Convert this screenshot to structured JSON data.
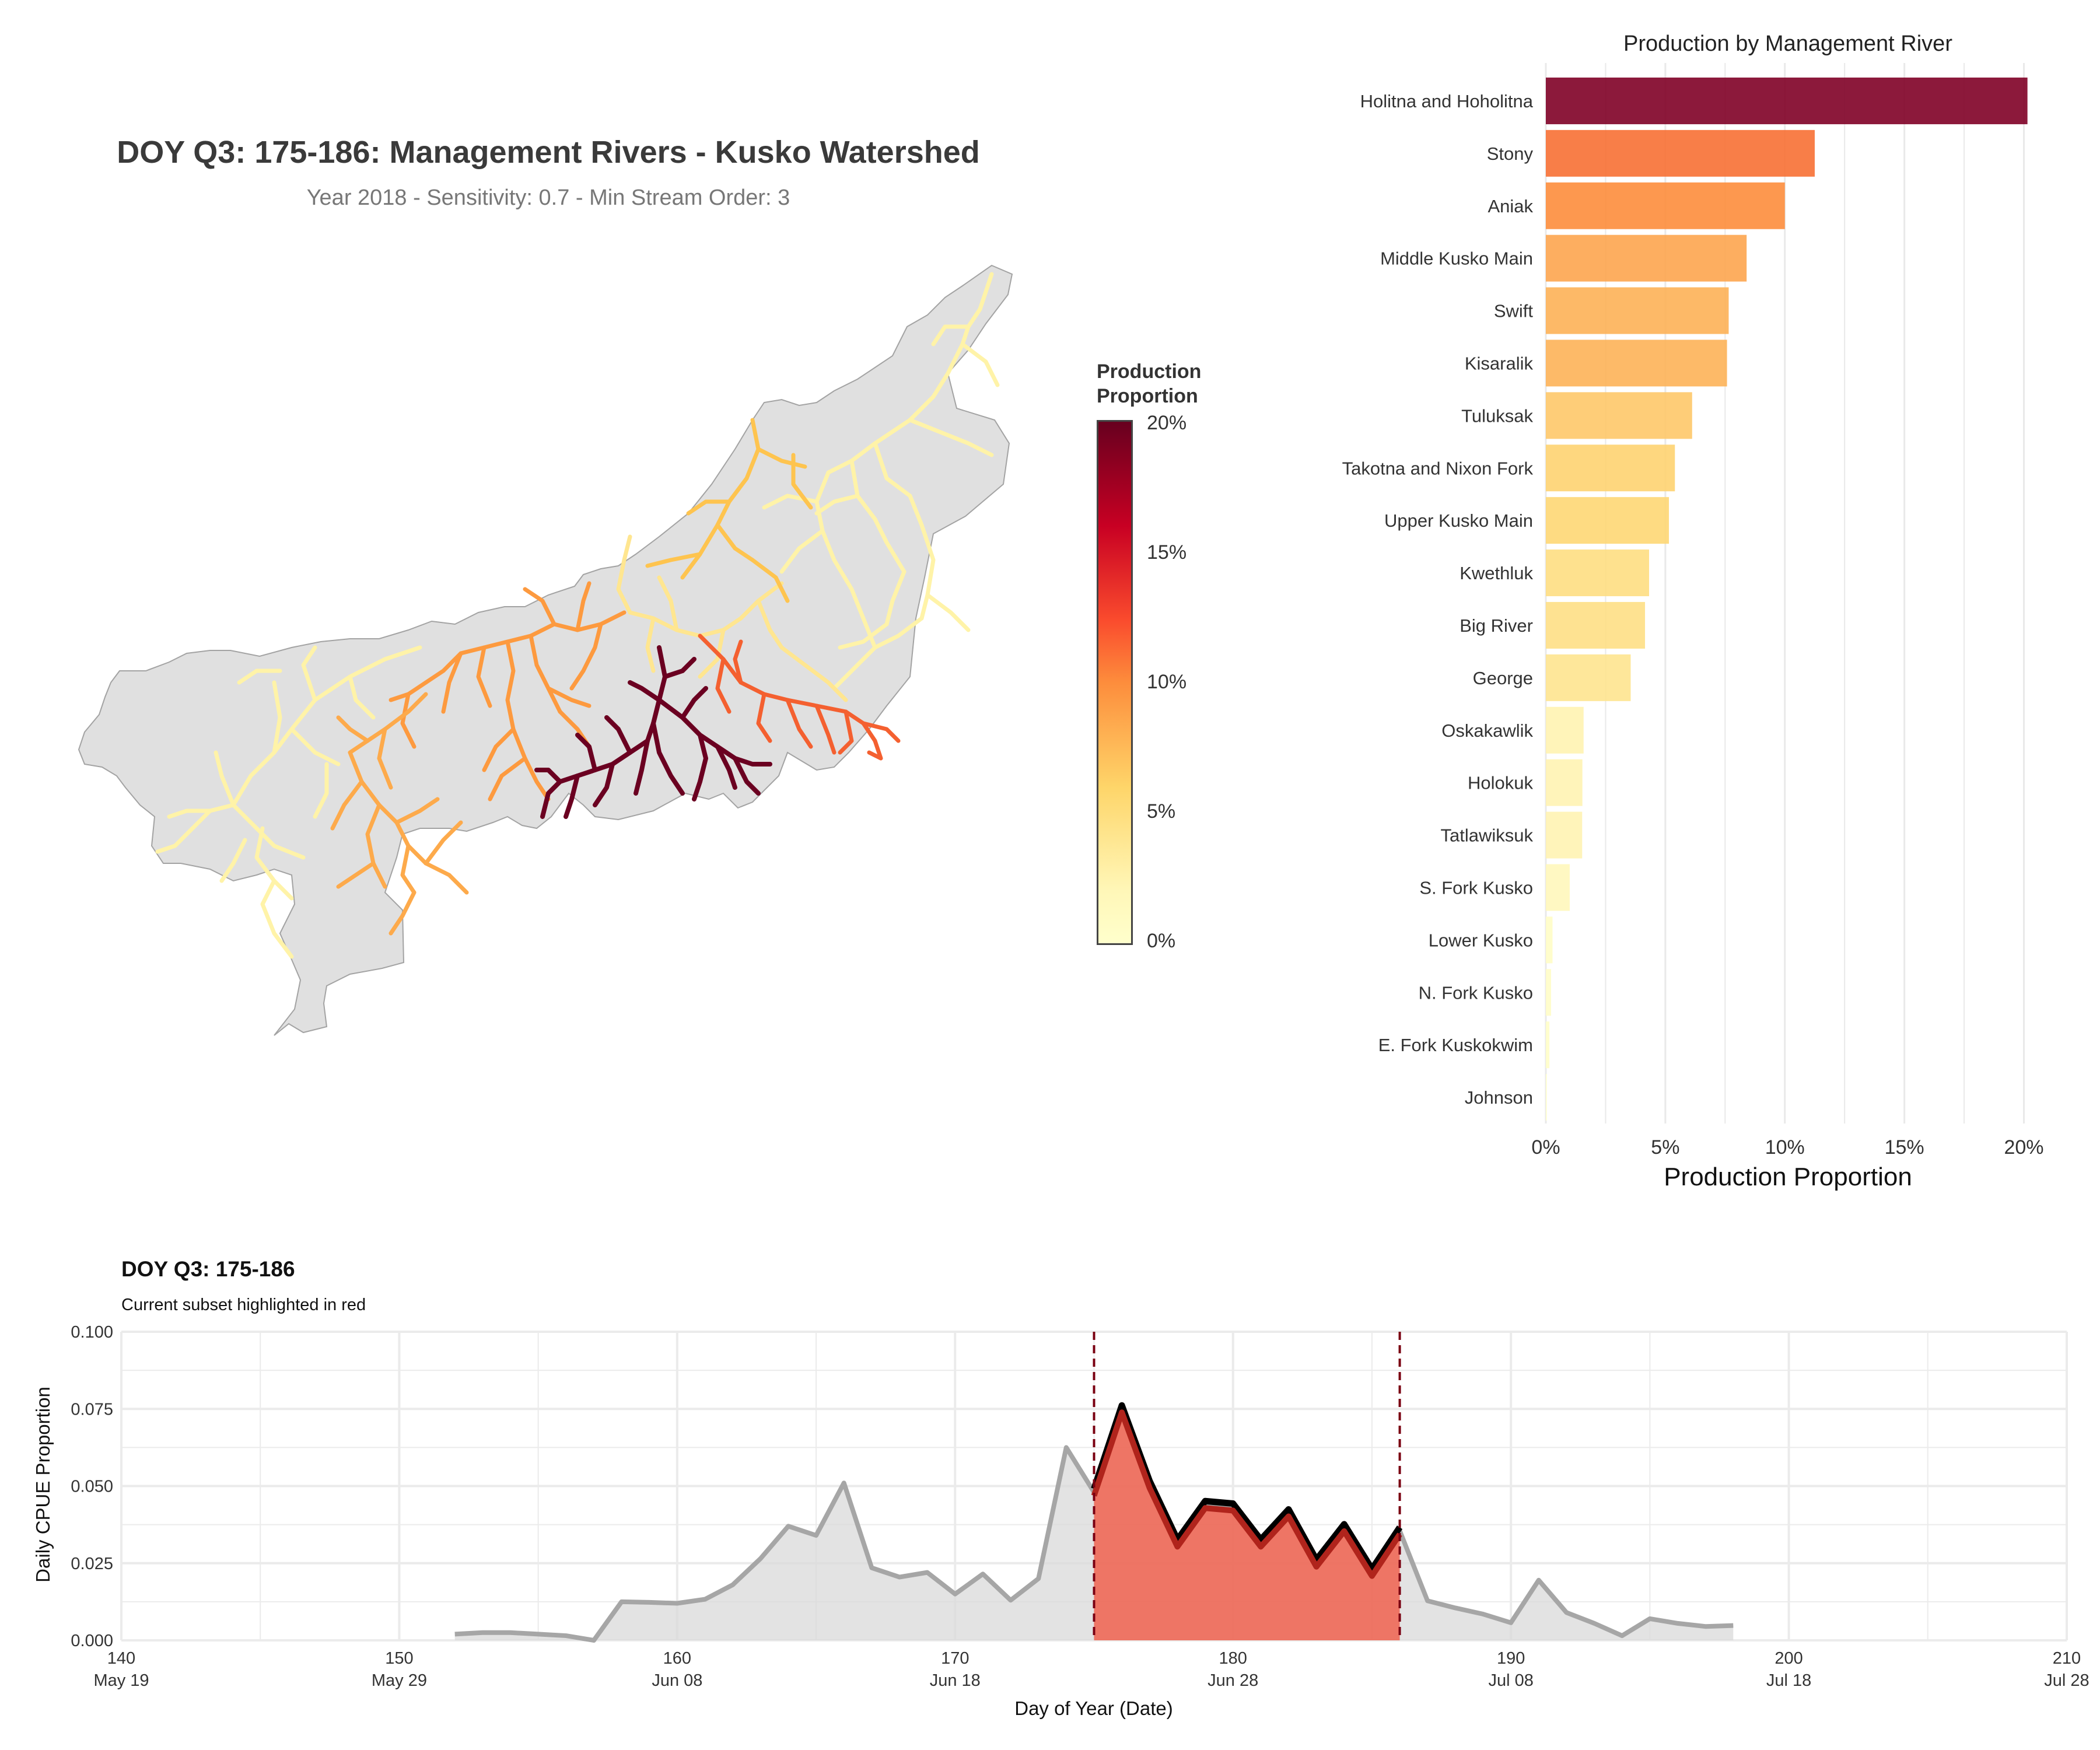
{
  "map": {
    "title": "DOY Q3: 175-186: Management Rivers - Kusko Watershed",
    "subtitle": "Year 2018 - Sensitivity: 0.7 - Min Stream Order: 3",
    "legend": {
      "title_line1": "Production",
      "title_line2": "Proportion",
      "ticks": [
        "20%",
        "15%",
        "10%",
        "5%",
        "0%"
      ]
    },
    "colors": {
      "land": "#e0e0e0",
      "outline": "#9e9e9e",
      "low": "#ffffcc",
      "high": "#67001f"
    }
  },
  "chart_data": [
    {
      "type": "bar",
      "orientation": "horizontal",
      "title": "Production by Management River",
      "xlabel": "Production Proportion",
      "ylabel": "",
      "xlim": [
        0,
        0.205
      ],
      "xticks": [
        0,
        0.05,
        0.1,
        0.15,
        0.2
      ],
      "xtick_labels": [
        "0%",
        "5%",
        "10%",
        "15%",
        "20%"
      ],
      "grid": true,
      "categories": [
        "Holitna and Hoholitna",
        "Stony",
        "Aniak",
        "Middle Kusko Main",
        "Swift",
        "Kisaralik",
        "Tuluksak",
        "Takotna and Nixon Fork",
        "Upper Kusko Main",
        "Kwethluk",
        "Big River",
        "George",
        "Oskakawlik",
        "Holokuk",
        "Tatlawiksuk",
        "S. Fork Kusko",
        "Lower Kusko",
        "N. Fork Kusko",
        "E. Fork Kuskokwim",
        "Johnson"
      ],
      "values": [
        0.2015,
        0.1125,
        0.1,
        0.084,
        0.0765,
        0.0758,
        0.0612,
        0.054,
        0.0515,
        0.0432,
        0.0415,
        0.0355,
        0.0158,
        0.0153,
        0.0152,
        0.01,
        0.0028,
        0.0022,
        0.0015,
        0.0004
      ]
    },
    {
      "type": "area",
      "title": "DOY Q3: 175-186",
      "subtitle": "Current subset highlighted in red",
      "xlabel": "Day of Year (Date)",
      "ylabel": "Daily CPUE Proportion",
      "xlim": [
        140,
        210
      ],
      "ylim": [
        0,
        0.1
      ],
      "xticks": [
        140,
        150,
        160,
        170,
        180,
        190,
        200,
        210
      ],
      "xtick_dates": [
        "May 19",
        "May 29",
        "Jun 08",
        "Jun 18",
        "Jun 28",
        "Jul 08",
        "Jul 18",
        "Jul 28"
      ],
      "yticks": [
        0,
        0.025,
        0.05,
        0.075,
        0.1
      ],
      "ytick_labels": [
        "0.000",
        "0.025",
        "0.050",
        "0.075",
        "0.100"
      ],
      "highlight_range": [
        175,
        186
      ],
      "x": [
        152,
        153,
        154,
        155,
        156,
        157,
        158,
        159,
        160,
        161,
        162,
        163,
        164,
        165,
        166,
        167,
        168,
        169,
        170,
        171,
        172,
        173,
        174,
        175,
        176,
        177,
        178,
        179,
        180,
        181,
        182,
        183,
        184,
        185,
        186,
        187,
        188,
        189,
        190,
        191,
        192,
        193,
        194,
        195,
        196,
        197,
        198
      ],
      "y": [
        0.002,
        0.0025,
        0.0025,
        0.002,
        0.0015,
        0.0,
        0.0125,
        0.0123,
        0.012,
        0.0133,
        0.018,
        0.0265,
        0.037,
        0.034,
        0.051,
        0.0235,
        0.0205,
        0.022,
        0.015,
        0.0215,
        0.013,
        0.02,
        0.0625,
        0.048,
        0.075,
        0.0505,
        0.0315,
        0.044,
        0.0432,
        0.0315,
        0.0413,
        0.025,
        0.0365,
        0.022,
        0.0355,
        0.0128,
        0.0105,
        0.0085,
        0.0057,
        0.0195,
        0.009,
        0.0055,
        0.0015,
        0.007,
        0.0055,
        0.0045,
        0.0048
      ]
    }
  ]
}
